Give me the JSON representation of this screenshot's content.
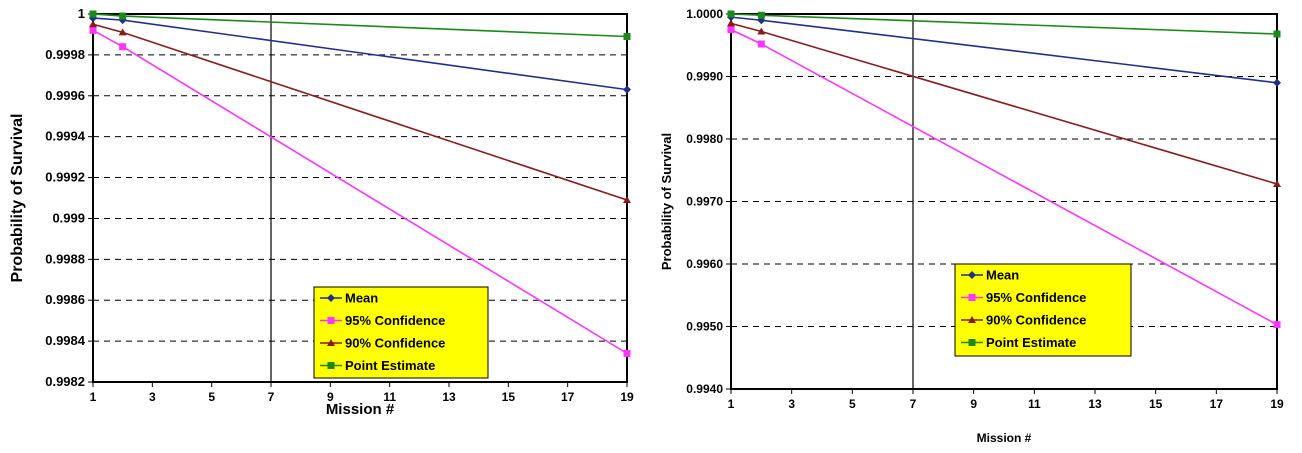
{
  "colors": {
    "mean": "#1f2f8f",
    "conf95": "#ff33ff",
    "conf90": "#8b1a1a",
    "point": "#1a8a1a",
    "legend_bg": "#ffff00"
  },
  "chart_data": [
    {
      "type": "line",
      "title": "",
      "xlabel": "Mission #",
      "ylabel": "Probability of Survival",
      "xlim": [
        1,
        19
      ],
      "ylim": [
        0.9982,
        1.0
      ],
      "xticks": [
        "1",
        "3",
        "5",
        "7",
        "9",
        "11",
        "13",
        "15",
        "17",
        "19"
      ],
      "yticks": [
        "1",
        "0.9998",
        "0.9996",
        "0.9994",
        "0.9992",
        "0.999",
        "0.9988",
        "0.9986",
        "0.9984",
        "0.9982"
      ],
      "grid": "horizontal dashed",
      "marker_line_x": 7,
      "legend_position": "bottom-right",
      "series": [
        {
          "name": "Mean",
          "color": "mean",
          "marker": "diamond",
          "x": [
            1,
            2,
            19
          ],
          "y": [
            0.99998,
            0.99997,
            0.99963
          ]
        },
        {
          "name": "95% Confidence",
          "color": "conf95",
          "marker": "square",
          "x": [
            1,
            2,
            19
          ],
          "y": [
            0.99992,
            0.99984,
            0.99834
          ]
        },
        {
          "name": "90% Confidence",
          "color": "conf90",
          "marker": "triangle",
          "x": [
            1,
            2,
            19
          ],
          "y": [
            0.99995,
            0.99991,
            0.99909
          ]
        },
        {
          "name": "Point Estimate",
          "color": "point",
          "marker": "square",
          "x": [
            1,
            2,
            19
          ],
          "y": [
            1.0,
            0.99999,
            0.99989
          ]
        }
      ]
    },
    {
      "type": "line",
      "title": "",
      "xlabel": "Mission #",
      "ylabel": "Probability of Survival",
      "xlim": [
        1,
        19
      ],
      "ylim": [
        0.994,
        1.0
      ],
      "xticks": [
        "1",
        "3",
        "5",
        "7",
        "9",
        "11",
        "13",
        "15",
        "17",
        "19"
      ],
      "yticks": [
        "1.0000",
        "0.9990",
        "0.9980",
        "0.9970",
        "0.9960",
        "0.9950",
        "0.9940"
      ],
      "grid": "horizontal dashed",
      "marker_line_x": 7,
      "legend_position": "bottom-right",
      "series": [
        {
          "name": "Mean",
          "color": "mean",
          "marker": "diamond",
          "x": [
            1,
            2,
            19
          ],
          "y": [
            0.99995,
            0.9999,
            0.9989
          ]
        },
        {
          "name": "95% Confidence",
          "color": "conf95",
          "marker": "square",
          "x": [
            1,
            2,
            19
          ],
          "y": [
            0.99975,
            0.99952,
            0.99503
          ]
        },
        {
          "name": "90% Confidence",
          "color": "conf90",
          "marker": "triangle",
          "x": [
            1,
            2,
            19
          ],
          "y": [
            0.99985,
            0.99972,
            0.99728
          ]
        },
        {
          "name": "Point Estimate",
          "color": "point",
          "marker": "square",
          "x": [
            1,
            2,
            19
          ],
          "y": [
            1.0,
            0.99998,
            0.99968
          ]
        }
      ]
    }
  ]
}
